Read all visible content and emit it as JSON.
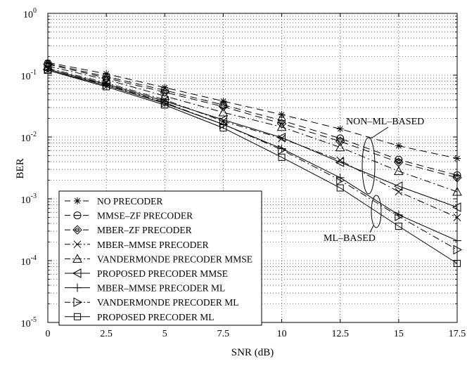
{
  "chart_data": {
    "type": "line",
    "xlabel": "SNR (dB)",
    "ylabel": "BER",
    "xlim": [
      0,
      17.5
    ],
    "ylim": [
      1e-05,
      1
    ],
    "yscale": "log",
    "grid": true,
    "x_ticks": [
      "0",
      "2.5",
      "5",
      "7.5",
      "10",
      "12.5",
      "15",
      "17.5"
    ],
    "y_ticks": [
      {
        "base": "10",
        "exp": "0"
      },
      {
        "base": "10",
        "exp": "-1"
      },
      {
        "base": "10",
        "exp": "-2"
      },
      {
        "base": "10",
        "exp": "-3"
      },
      {
        "base": "10",
        "exp": "-4"
      },
      {
        "base": "10",
        "exp": "-5"
      }
    ],
    "legend_position": "bottom-left",
    "x": [
      0,
      2.5,
      5,
      7.5,
      10,
      12.5,
      15,
      17.5
    ],
    "series": [
      {
        "name": "NO PRECODER",
        "marker": "star",
        "dash": "10,6",
        "values": [
          0.16,
          0.105,
          0.063,
          0.038,
          0.023,
          0.0135,
          0.0072,
          0.0045
        ]
      },
      {
        "name": "MMSE–ZF PRECODER",
        "marker": "circle-dash",
        "dash": "10,6",
        "values": [
          0.155,
          0.095,
          0.057,
          0.033,
          0.0185,
          0.0095,
          0.0043,
          0.0024
        ]
      },
      {
        "name": "MBER–ZF PRECODER",
        "marker": "diamond",
        "dash": "10,6",
        "values": [
          0.15,
          0.09,
          0.053,
          0.031,
          0.0165,
          0.0085,
          0.0039,
          0.0022
        ]
      },
      {
        "name": "MBER–MMSE PRECODER",
        "marker": "x",
        "dash": "10,4,2,4",
        "values": [
          0.13,
          0.075,
          0.04,
          0.018,
          0.0095,
          0.0042,
          0.0013,
          0.0005
        ]
      },
      {
        "name": "VANDERMONDE PRECODER MMSE",
        "marker": "triangle-up",
        "dash": "10,4,2,4",
        "values": [
          0.14,
          0.085,
          0.046,
          0.025,
          0.0145,
          0.0068,
          0.0028,
          0.0013
        ]
      },
      {
        "name": "PROPOSED PRECODER MMSE",
        "marker": "triangle-left",
        "dash": "",
        "values": [
          0.125,
          0.072,
          0.038,
          0.019,
          0.0098,
          0.0039,
          0.0016,
          0.00073
        ]
      },
      {
        "name": "MBER–MMSE PRECODER ML",
        "marker": "plus",
        "dash": "",
        "values": [
          0.12,
          0.068,
          0.035,
          0.016,
          0.0065,
          0.0022,
          0.00055,
          0.00021
        ]
      },
      {
        "name": "VANDERMONDE PRECODER ML",
        "marker": "triangle-right",
        "dash": "10,4,2,4",
        "values": [
          0.125,
          0.07,
          0.036,
          0.016,
          0.0062,
          0.002,
          0.00052,
          0.00015
        ]
      },
      {
        "name": "PROPOSED PRECODER ML",
        "marker": "square",
        "dash": "",
        "values": [
          0.12,
          0.065,
          0.033,
          0.014,
          0.0047,
          0.0015,
          0.00036,
          9e-05
        ]
      }
    ],
    "annotations": [
      {
        "text": "NON–ML–BASED",
        "ellipse_x": 13.65,
        "ellipse_y": 0.0045
      },
      {
        "text": "ML–BASED",
        "ellipse_x": 14.1,
        "ellipse_y": 0.00065
      }
    ]
  }
}
